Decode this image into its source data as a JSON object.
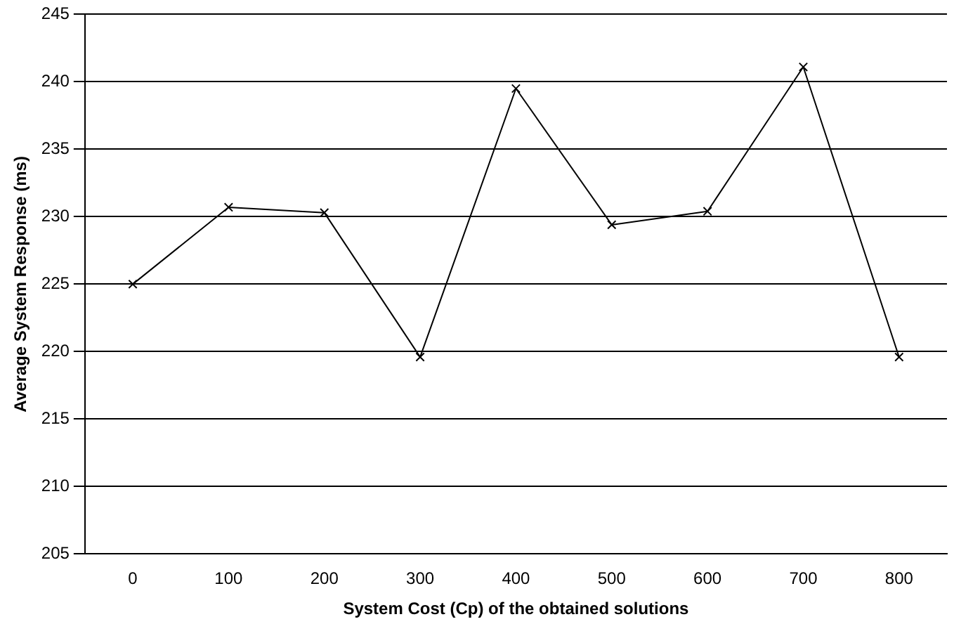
{
  "chart_data": {
    "type": "line",
    "xlabel": "System Cost (Cp) of the obtained solutions",
    "ylabel": "Average System Response (ms)",
    "categories": [
      "0",
      "100",
      "200",
      "300",
      "400",
      "500",
      "600",
      "700",
      "800"
    ],
    "series": [
      {
        "color": "#000000",
        "values": [
          225.0,
          230.7,
          230.3,
          219.6,
          239.5,
          229.4,
          230.4,
          241.1,
          219.6
        ]
      }
    ],
    "ylim": [
      205,
      245
    ],
    "yticks": [
      205,
      210,
      215,
      220,
      225,
      230,
      235,
      240,
      245
    ],
    "grid": "y",
    "legend": false,
    "marker": "cross",
    "line_style": "solid"
  }
}
